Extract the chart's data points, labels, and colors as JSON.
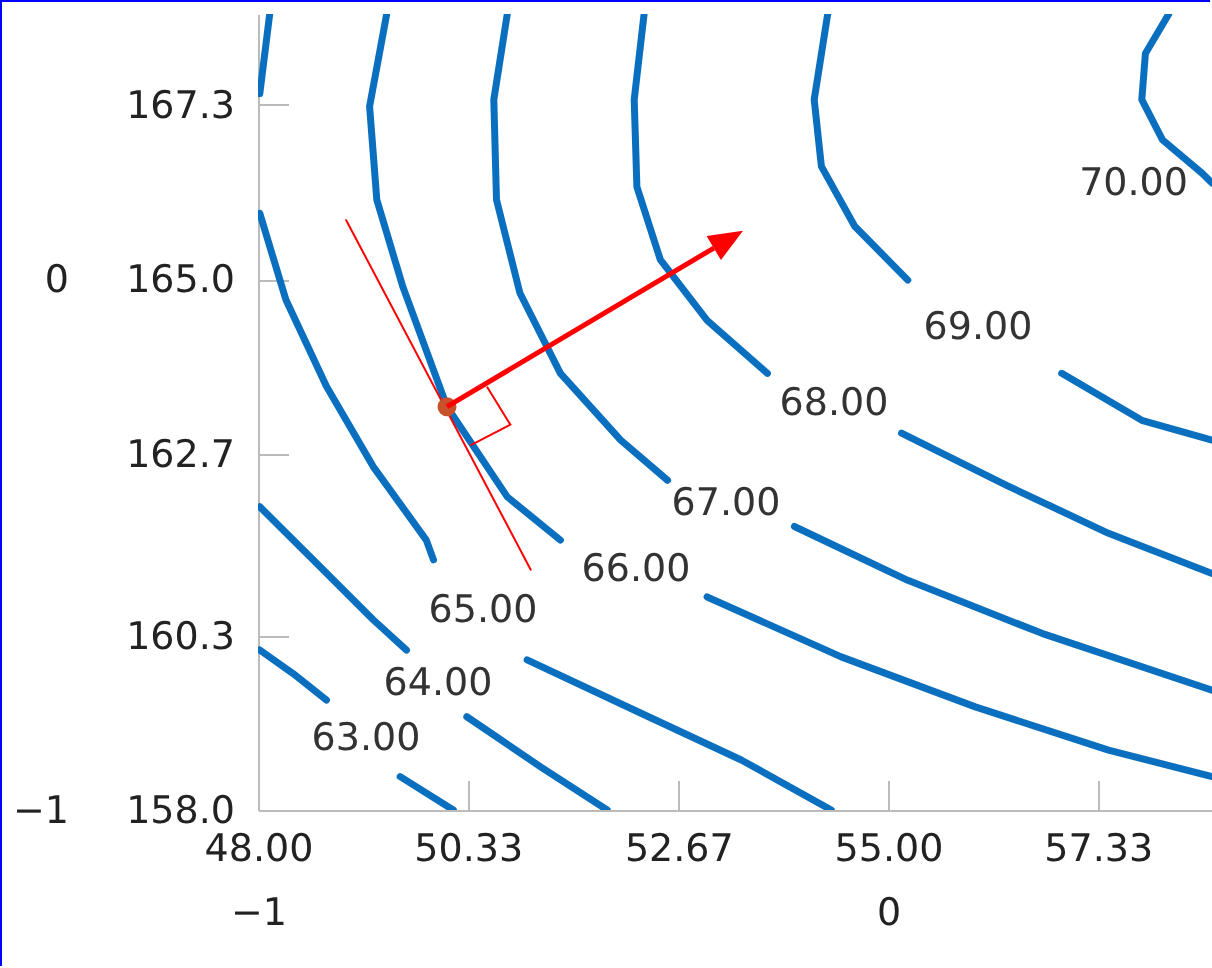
{
  "chart_data": {
    "type": "line",
    "xlim": [
      48,
      58.6
    ],
    "ylim": [
      158,
      168.5
    ],
    "xticks": [
      {
        "value": 48,
        "label": "48.00"
      },
      50.33,
      52.67,
      {
        "value": 55,
        "label": "55.00"
      },
      57.33
    ],
    "yticks": [
      {
        "value": 158,
        "label": "158.0"
      },
      160.3,
      162.7,
      {
        "value": 165,
        "label": "165.0"
      },
      167.3
    ],
    "x2lim": [
      -1,
      0.514
    ],
    "x2ticks": [
      {
        "value": -1,
        "label": "−1"
      },
      0
    ],
    "y2lim": [
      -1,
      0.5
    ],
    "y2ticks": [
      {
        "value": -1,
        "label": "−1"
      },
      0
    ],
    "grid": false,
    "series": [
      {
        "name": "63.00",
        "color": "#0b6fbf",
        "x": [
          48.02,
          48.39,
          48.76,
          49.2,
          49.58,
          50.17
        ],
        "values": [
          160.11,
          159.8,
          159.45,
          null,
          158.44,
          158.0
        ]
      },
      {
        "name": "64.00",
        "color": "#0b6fbf",
        "x": [
          48.02,
          48.69,
          49.28,
          49.65,
          50.0,
          50.32,
          51.14,
          51.88
        ],
        "values": [
          162.0,
          161.21,
          160.51,
          160.11,
          null,
          159.23,
          158.57,
          158.0
        ]
      },
      {
        "color": "#0b6fbf",
        "x": [
          48.13,
          48.02
        ],
        "values": [
          168.5,
          167.45
        ]
      },
      {
        "name": "65.00",
        "color": "#0b6fbf",
        "x": [
          48.02,
          48.31,
          48.76,
          49.28,
          49.87,
          49.95,
          50.5,
          50.99,
          52.25,
          53.37,
          54.37
        ],
        "values": [
          165.87,
          164.73,
          163.59,
          162.53,
          161.56,
          161.3,
          null,
          159.98,
          159.28,
          158.66,
          158.0
        ]
      },
      {
        "name": "66.00",
        "color": "#0b6fbf",
        "x": [
          49.43,
          49.24,
          49.32,
          49.61,
          50.1,
          50.77,
          51.36,
          52.2,
          52.99,
          54.48,
          55.97,
          57.45,
          58.6
        ],
        "values": [
          168.5,
          167.28,
          166.05,
          164.9,
          163.32,
          162.13,
          161.56,
          null,
          160.81,
          160.02,
          159.36,
          158.79,
          158.44
        ]
      },
      {
        "name": "67.00",
        "color": "#0b6fbf",
        "x": [
          50.77,
          50.62,
          50.65,
          50.91,
          51.36,
          52.03,
          52.55,
          53.2,
          53.96,
          55.22,
          56.71,
          58.6
        ],
        "values": [
          168.5,
          167.37,
          166.05,
          164.82,
          163.76,
          162.88,
          162.35,
          null,
          161.74,
          161.03,
          160.33,
          159.58
        ]
      },
      {
        "name": "68.00",
        "color": "#0b6fbf",
        "x": [
          52.29,
          52.18,
          52.21,
          52.47,
          52.99,
          53.66,
          54.4,
          55.15,
          56.34,
          57.45,
          58.6
        ],
        "values": [
          168.5,
          167.37,
          166.22,
          165.26,
          164.46,
          163.76,
          null,
          162.97,
          162.27,
          161.65,
          161.12
        ]
      },
      {
        "name": "69.00",
        "color": "#0b6fbf",
        "x": [
          54.33,
          54.18,
          54.26,
          54.63,
          55.22,
          56.0,
          56.93,
          57.82,
          58.6
        ],
        "values": [
          168.5,
          167.37,
          166.49,
          165.7,
          164.99,
          null,
          163.76,
          163.14,
          162.88
        ]
      },
      {
        "name": "70.00",
        "color": "#0b6fbf",
        "x": [
          58.12,
          57.86,
          57.82,
          58.05,
          58.49,
          58.6
        ],
        "values": [
          168.5,
          167.98,
          167.37,
          166.84,
          166.4,
          166.27
        ]
      },
      {
        "color": "#ff0000",
        "x": [
          48.98,
          51.03
        ],
        "values": [
          165.78,
          161.17
        ]
      },
      {
        "type": "scatter",
        "color": "#c8502a",
        "marker": "circle",
        "x": [
          50.1
        ],
        "values": [
          163.32
        ]
      }
    ]
  }
}
